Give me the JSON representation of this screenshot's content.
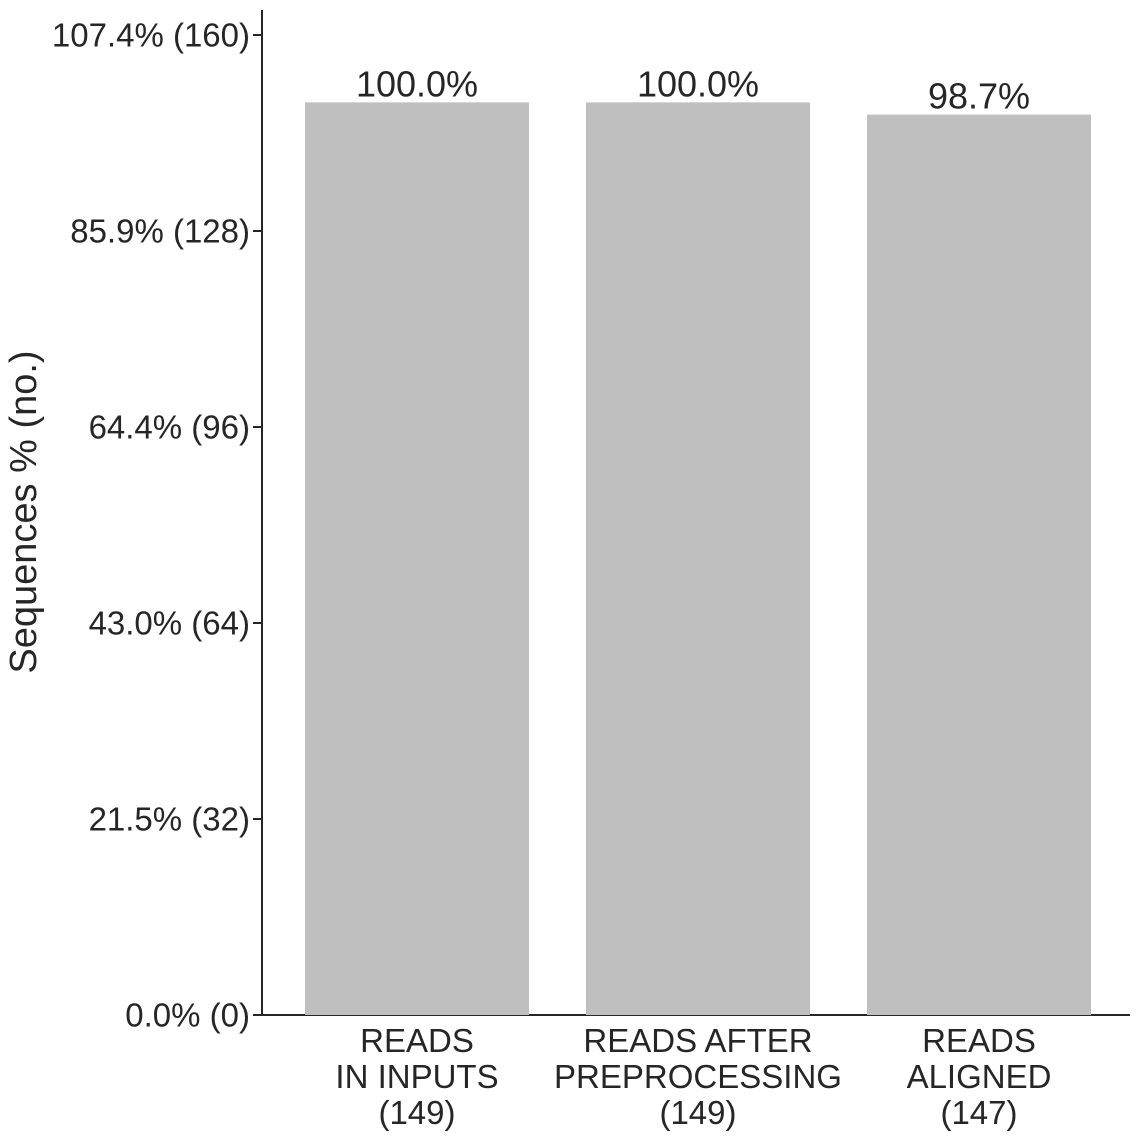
{
  "chart_data": {
    "type": "bar",
    "title": "",
    "xlabel": "",
    "ylabel": "Sequences % (no.)",
    "ylim": [
      0,
      160
    ],
    "grid": false,
    "legend": "none",
    "bar_color": "#bfbfbf",
    "axis_color": "#262626",
    "categories": [
      [
        "READS",
        "IN INPUTS",
        "(149)"
      ],
      [
        "READS AFTER",
        "PREPROCESSING",
        "(149)"
      ],
      [
        "READS",
        "ALIGNED",
        "(147)"
      ]
    ],
    "values": [
      149,
      149,
      147
    ],
    "data_labels": [
      "100.0%",
      "100.0%",
      "98.7%"
    ],
    "y_ticks": [
      {
        "value": 0,
        "label": "0.0% (0)"
      },
      {
        "value": 32,
        "label": "21.5% (32)"
      },
      {
        "value": 64,
        "label": "43.0% (64)"
      },
      {
        "value": 96,
        "label": "64.4% (96)"
      },
      {
        "value": 128,
        "label": "85.9% (128)"
      },
      {
        "value": 160,
        "label": "107.4% (160)"
      }
    ]
  }
}
